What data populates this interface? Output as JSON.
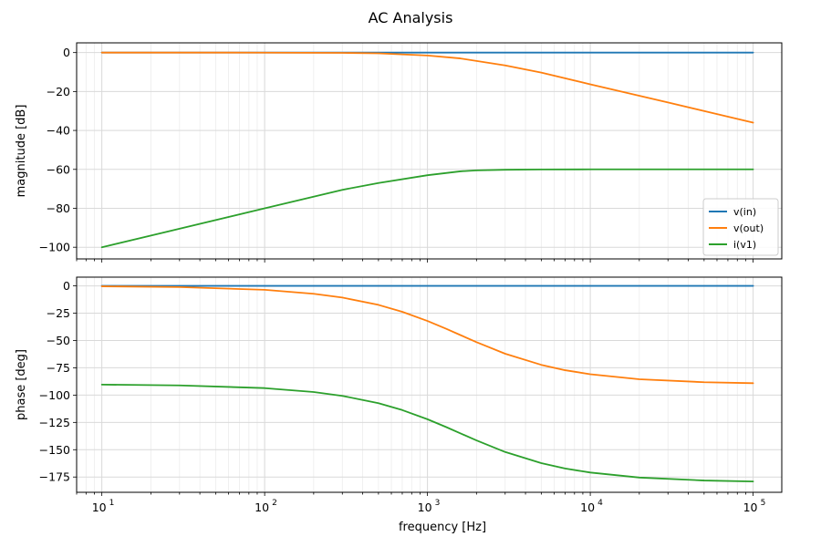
{
  "figure": {
    "title": "AC Analysis",
    "xlabel": "frequency [Hz]",
    "x_tick_bases": [
      "10",
      "10",
      "10",
      "10",
      "10"
    ],
    "x_tick_exps": [
      "1",
      "2",
      "3",
      "4",
      "5"
    ]
  },
  "chart_data": [
    {
      "type": "line",
      "xscale": "log",
      "xlim": [
        7,
        150000
      ],
      "ylim": [
        -106,
        5
      ],
      "ylabel": "magnitude [dB]",
      "yticks": [
        0,
        -20,
        -40,
        -60,
        -80,
        -100
      ],
      "ytick_labels": [
        "0",
        "−20",
        "−40",
        "−60",
        "−80",
        "−100"
      ],
      "grid": true,
      "legend_position": "lower-right",
      "series": [
        {
          "name": "v(in)",
          "color": "#1f77b4",
          "x": [
            10,
            100000
          ],
          "y": [
            0,
            0
          ]
        },
        {
          "name": "v(out)",
          "color": "#ff7f0e",
          "x": [
            10,
            100,
            300,
            500,
            1000,
            1591.5,
            3000,
            5000,
            10000,
            30000,
            100000
          ],
          "y": [
            0,
            -0.02,
            -0.15,
            -0.4,
            -1.5,
            -3.0,
            -6.6,
            -10.3,
            -16.3,
            -25.6,
            -36.0
          ]
        },
        {
          "name": "i(v1)",
          "color": "#2ca02c",
          "x": [
            10,
            30,
            100,
            300,
            500,
            1000,
            1591.5,
            2000,
            3000,
            5000,
            10000,
            100000
          ],
          "y": [
            -100,
            -90.5,
            -80,
            -70.5,
            -67.0,
            -63.0,
            -61.0,
            -60.5,
            -60.2,
            -60.05,
            -60.0,
            -60.0
          ]
        }
      ]
    },
    {
      "type": "line",
      "xscale": "log",
      "xlim": [
        7,
        150000
      ],
      "ylim": [
        -189,
        8
      ],
      "ylabel": "phase [deg]",
      "yticks": [
        0,
        -25,
        -50,
        -75,
        -100,
        -125,
        -150,
        -175
      ],
      "ytick_labels": [
        "0",
        "−25",
        "−50",
        "−75",
        "−100",
        "−125",
        "−150",
        "−175"
      ],
      "grid": true,
      "series": [
        {
          "name": "v(in)",
          "color": "#1f77b4",
          "x": [
            10,
            100000
          ],
          "y": [
            0,
            0
          ]
        },
        {
          "name": "v(out)",
          "color": "#ff7f0e",
          "x": [
            10,
            30,
            100,
            200,
            300,
            500,
            700,
            1000,
            1300,
            1591.5,
            2000,
            3000,
            5000,
            7000,
            10000,
            20000,
            50000,
            100000
          ],
          "y": [
            -0.4,
            -1.1,
            -3.6,
            -7.2,
            -10.7,
            -17.4,
            -23.7,
            -32.1,
            -39.2,
            -45.0,
            -51.5,
            -62.1,
            -72.3,
            -77.2,
            -80.9,
            -85.5,
            -88.2,
            -89.1
          ]
        },
        {
          "name": "i(v1)",
          "color": "#2ca02c",
          "x": [
            10,
            30,
            100,
            200,
            300,
            500,
            700,
            1000,
            1300,
            1591.5,
            2000,
            3000,
            5000,
            7000,
            10000,
            20000,
            50000,
            100000
          ],
          "y": [
            -90.4,
            -91.1,
            -93.6,
            -97.2,
            -100.7,
            -107.4,
            -113.7,
            -122.1,
            -129.2,
            -135.0,
            -141.5,
            -152.1,
            -162.3,
            -167.2,
            -170.9,
            -175.5,
            -178.2,
            -179.1
          ]
        }
      ]
    }
  ]
}
